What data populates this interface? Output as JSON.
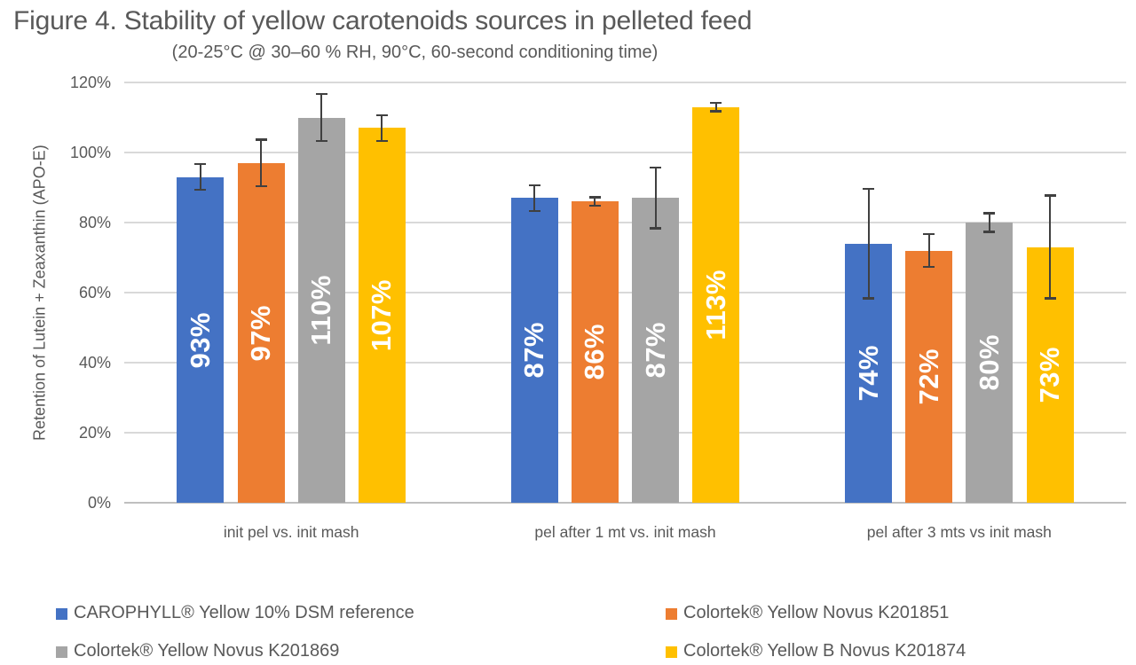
{
  "chart_data": {
    "type": "bar",
    "title": "Figure 4. Stability of yellow carotenoids sources in pelleted feed",
    "subtitle": "(20-25°C @ 30–60 % RH, 90°C, 60-second conditioning time)",
    "ylabel": "Retention of Lutein + Zeaxanthin (APO-E)",
    "xlabel": "",
    "ylim": [
      0,
      120
    ],
    "yticks": [
      0,
      20,
      40,
      60,
      80,
      100,
      120
    ],
    "ytick_labels": [
      "0%",
      "20%",
      "40%",
      "60%",
      "80%",
      "100%",
      "120%"
    ],
    "grid": true,
    "legend_position": "bottom",
    "categories": [
      "init pel vs. init mash",
      "pel after 1 mt vs. init mash",
      "pel after 3 mts vs init mash"
    ],
    "series": [
      {
        "name": "CAROPHYLL® Yellow 10% DSM reference",
        "color": "#4472C4",
        "values": [
          93,
          87,
          74
        ],
        "value_labels": [
          "93%",
          "87%",
          "74%"
        ],
        "errors": [
          4,
          4,
          16
        ]
      },
      {
        "name": "Colortek® Yellow Novus K201851",
        "color": "#ED7D31",
        "values": [
          97,
          86,
          72
        ],
        "value_labels": [
          "97%",
          "86%",
          "72%"
        ],
        "errors": [
          7,
          1.5,
          5
        ]
      },
      {
        "name": "Colortek® Yellow Novus K201869",
        "color": "#A5A5A5",
        "values": [
          110,
          87,
          80
        ],
        "value_labels": [
          "110%",
          "87%",
          "80%"
        ],
        "errors": [
          7,
          9,
          3
        ]
      },
      {
        "name": "Colortek® Yellow B Novus K201874",
        "color": "#FFC000",
        "values": [
          107,
          113,
          73
        ],
        "value_labels": [
          "107%",
          "113%",
          "73%"
        ],
        "errors": [
          4,
          1.5,
          15
        ]
      }
    ]
  }
}
